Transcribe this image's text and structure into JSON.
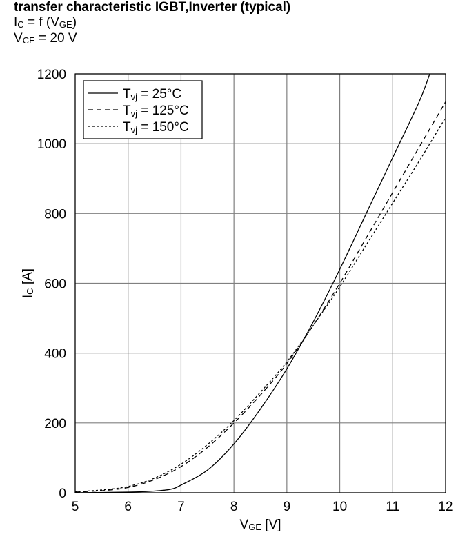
{
  "header": {
    "title": "transfer characteristic IGBT,Inverter (typical)",
    "line1": {
      "main": "I",
      "sub": "C",
      "mid": " = f (V",
      "sub2": "GE",
      "end": ")"
    },
    "line2": {
      "main": "V",
      "sub": "CE",
      "end": " = 20 V"
    }
  },
  "chart_data": {
    "type": "line",
    "title": "transfer characteristic IGBT,Inverter (typical)",
    "xlabel": "VGE [V]",
    "ylabel": "IC [A]",
    "xlim": [
      5,
      12
    ],
    "ylim": [
      0,
      1200
    ],
    "xticks": [
      5,
      6,
      7,
      8,
      9,
      10,
      11,
      12
    ],
    "yticks": [
      0,
      200,
      400,
      600,
      800,
      1000,
      1200
    ],
    "grid": true,
    "legend_position": "top-left",
    "series": [
      {
        "name": "Tvj = 25°C",
        "style": "solid",
        "x": [
          5,
          6,
          6.5,
          6.8,
          7,
          7.5,
          8,
          8.5,
          9,
          9.5,
          10,
          10.5,
          11,
          11.5,
          11.7
        ],
        "y": [
          0,
          2,
          5,
          10,
          22,
          65,
          140,
          240,
          355,
          490,
          640,
          800,
          960,
          1120,
          1200
        ]
      },
      {
        "name": "Tvj = 125°C",
        "style": "dashed",
        "x": [
          5,
          5.5,
          6,
          6.5,
          7,
          7.5,
          8,
          8.5,
          9,
          9.5,
          10,
          10.5,
          11,
          11.5,
          12
        ],
        "y": [
          2,
          6,
          15,
          38,
          75,
          130,
          200,
          280,
          370,
          480,
          600,
          730,
          860,
          990,
          1120
        ]
      },
      {
        "name": "Tvj = 150°C",
        "style": "dotted",
        "x": [
          5,
          5.5,
          6,
          6.5,
          7,
          7.5,
          8,
          8.5,
          9,
          9.5,
          10,
          10.5,
          11,
          11.5,
          12
        ],
        "y": [
          3,
          8,
          18,
          42,
          82,
          138,
          207,
          288,
          375,
          480,
          590,
          710,
          830,
          950,
          1075
        ]
      }
    ]
  },
  "legend": {
    "entries": [
      {
        "main": "T",
        "sub": "vj",
        "rest": " = 25°C"
      },
      {
        "main": "T",
        "sub": "vj",
        "rest": " = 125°C"
      },
      {
        "main": "T",
        "sub": "vj",
        "rest": " = 150°C"
      }
    ]
  },
  "axes": {
    "xlabel": {
      "main": "V",
      "sub": "GE",
      "rest": " [V]"
    },
    "ylabel": {
      "main": "I",
      "sub": "C",
      "rest": " [A]"
    }
  },
  "colors": {
    "line": "#000000",
    "grid": "#808080",
    "background": "#ffffff"
  }
}
